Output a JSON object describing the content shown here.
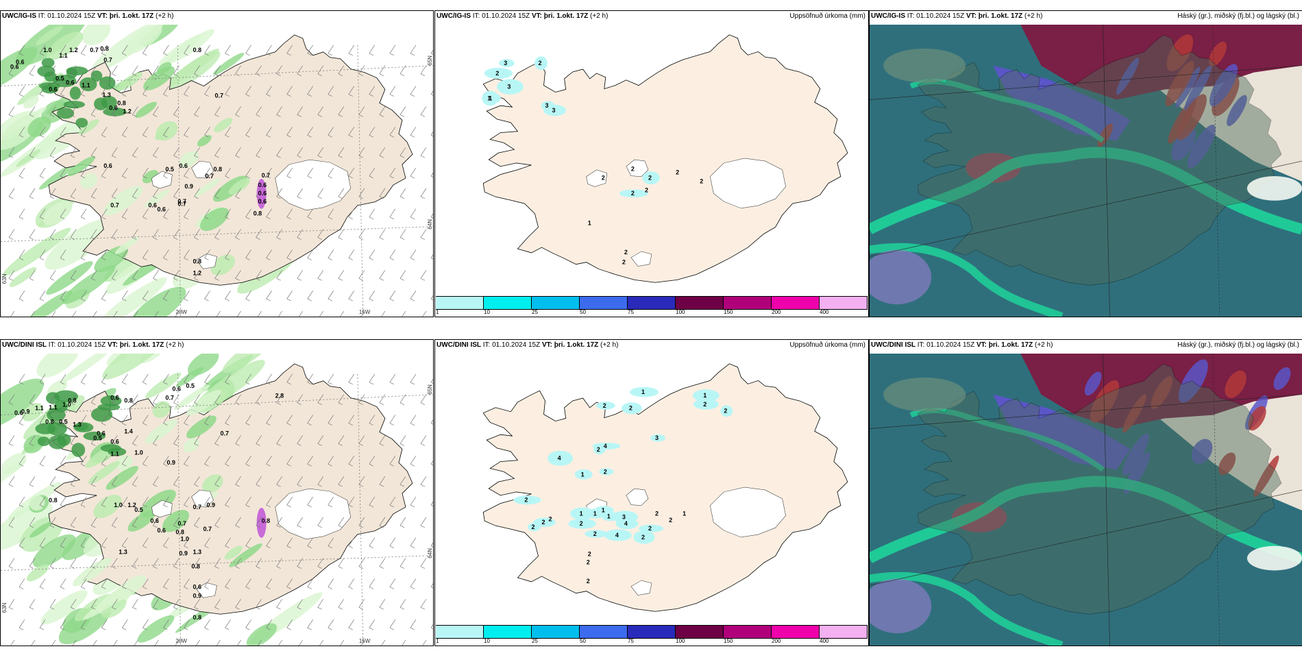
{
  "rows": [
    {
      "model": "UWC/IG-IS",
      "run": "IT: 01.10.2024 15Z",
      "valid_label": "VT:",
      "valid": "þri. 1.okt. 17Z",
      "lead": "(+2 h)",
      "wind_panel": {
        "labels": [
          "0.6",
          "0.6",
          "1.0",
          "1.1",
          "1.2",
          "0.7",
          "0.8",
          "0.7",
          "0.5",
          "0.6",
          "1.1",
          "0.6",
          "1.3",
          "0.8",
          "0.6",
          "1.2",
          "0.7",
          "0.6",
          "0.6",
          "0.7",
          "0.5",
          "0.9",
          "0.7",
          "0.7",
          "0.8",
          "0.7",
          "0.6",
          "0.6",
          "0.6",
          "0.8",
          "1.2",
          "0.7",
          "0.8",
          "0.6",
          "0.6",
          "0.8"
        ],
        "lon_labels": [
          "20W",
          "15W"
        ],
        "lat_labels": [
          "65N",
          "64N",
          "63N"
        ]
      },
      "precip_panel": {
        "title": "Uppsöfnuð úrkoma (mm)",
        "labels": [
          "3",
          "2",
          "1",
          "3",
          "2",
          "3",
          "3",
          "1",
          "2",
          "2",
          "2",
          "2",
          "2",
          "2",
          "2",
          "1",
          "2",
          "2"
        ]
      },
      "cloud_panel": {
        "title": "Háský (gr.), miðský (fj.bl.) og lágský (bl.)"
      }
    },
    {
      "model": "UWC/DINI ISL",
      "run": "IT: 01.10.2024 15Z",
      "valid_label": "VT:",
      "valid": "þri. 1.okt. 17Z",
      "lead": "(+2 h)",
      "wind_panel": {
        "labels": [
          "0.6",
          "0.9",
          "1.1",
          "1.1",
          "1.0",
          "0.8",
          "0.6",
          "0.5",
          "0.6",
          "0.7",
          "0.8",
          "1.4",
          "0.6",
          "0.5",
          "0.6",
          "0.8",
          "0.5",
          "1.3",
          "2.8",
          "0.7",
          "1.1",
          "1.0",
          "0.9",
          "0.8",
          "1.0",
          "1.2",
          "0.5",
          "0.6",
          "0.6",
          "0.8",
          "0.7",
          "0.7",
          "0.9",
          "0.8",
          "1.3",
          "1.0",
          "1.3",
          "0.9",
          "0.8",
          "0.6",
          "0.9",
          "0.7",
          "0.8"
        ],
        "lon_labels": [
          "20W",
          "15W"
        ],
        "lat_labels": [
          "65N",
          "64N",
          "63N"
        ]
      },
      "precip_panel": {
        "title": "Uppsöfnuð úrkoma (mm)",
        "labels": [
          "1",
          "2",
          "2",
          "1",
          "2",
          "2",
          "1",
          "2",
          "2",
          "4",
          "2",
          "3",
          "4",
          "1",
          "1",
          "1",
          "1",
          "2",
          "3",
          "4",
          "4",
          "2",
          "2",
          "2",
          "2",
          "2",
          "2",
          "2",
          "2",
          "1",
          "2",
          "2",
          "2"
        ]
      },
      "cloud_panel": {
        "title": "Háský (gr.), miðský (fj.bl.) og lágský (bl.)"
      }
    }
  ],
  "legend": {
    "ticks": [
      "1",
      "10",
      "25",
      "50",
      "75",
      "100",
      "150",
      "200",
      "400"
    ],
    "colors": [
      "#b8f6f6",
      "#00eeee",
      "#00bfee",
      "#3c6bee",
      "#2a2aba",
      "#6e0046",
      "#b0007a",
      "#ee00aa",
      "#f4b0f0"
    ]
  }
}
